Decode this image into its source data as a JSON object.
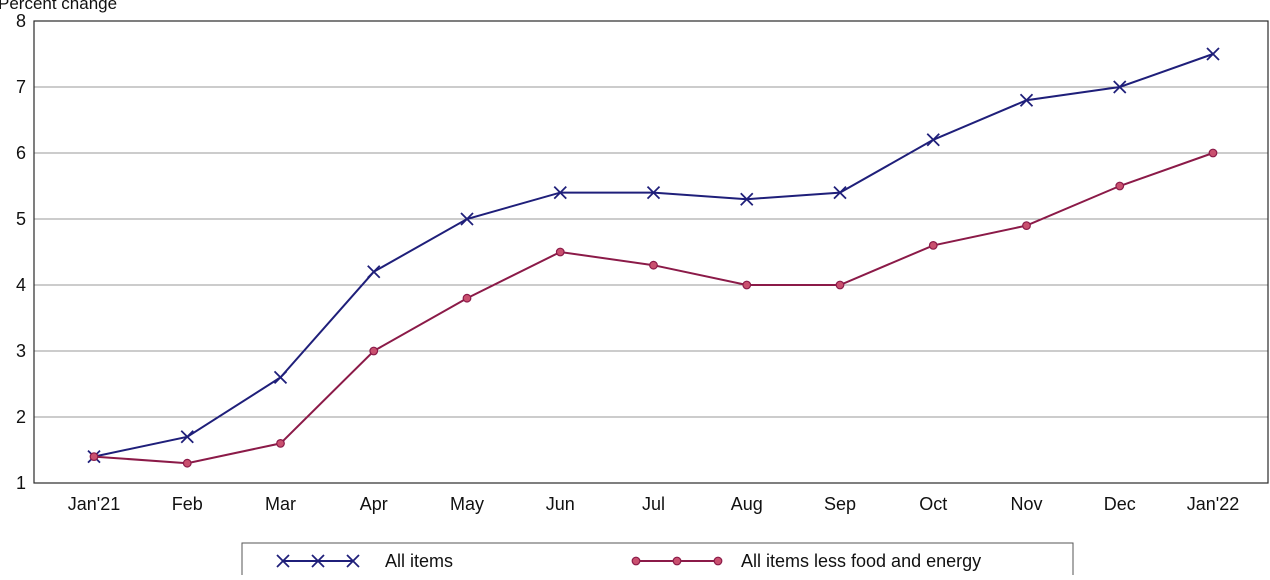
{
  "chart_data": {
    "type": "line",
    "title": "",
    "xlabel": "",
    "ylabel": "Percent change",
    "categories": [
      "Jan'21",
      "Feb",
      "Mar",
      "Apr",
      "May",
      "Jun",
      "Jul",
      "Aug",
      "Sep",
      "Oct",
      "Nov",
      "Dec",
      "Jan'22"
    ],
    "ylim": [
      1,
      8
    ],
    "yticks": [
      1,
      2,
      3,
      4,
      5,
      6,
      7,
      8
    ],
    "grid": "horizontal",
    "legend_position": "bottom",
    "series": [
      {
        "name": "All items",
        "color": "#1f1f7a",
        "marker": "x",
        "values": [
          1.4,
          1.7,
          2.6,
          4.2,
          5.0,
          5.4,
          5.4,
          5.3,
          5.4,
          6.2,
          6.8,
          7.0,
          7.5
        ]
      },
      {
        "name": "All items less food and energy",
        "color": "#8b1a48",
        "marker": "circle",
        "values": [
          1.4,
          1.3,
          1.6,
          3.0,
          3.8,
          4.5,
          4.3,
          4.0,
          4.0,
          4.6,
          4.9,
          5.5,
          6.0
        ]
      }
    ]
  }
}
